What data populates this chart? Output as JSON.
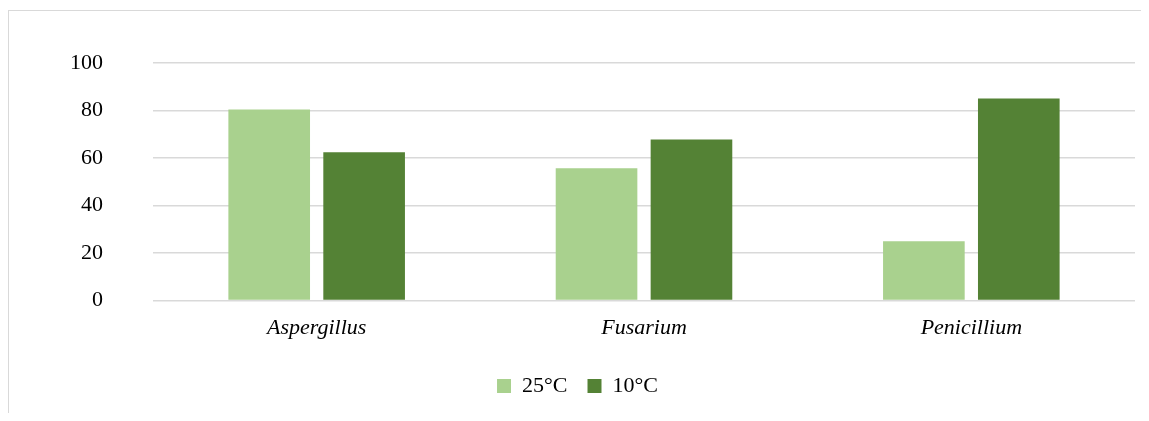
{
  "chart_data": {
    "type": "bar",
    "categories": [
      "Aspergillus",
      "Fusarium",
      "Penicillium"
    ],
    "series": [
      {
        "name": "25°C",
        "color": "#a9d18e",
        "values": [
          80.5,
          55.7,
          25
        ]
      },
      {
        "name": "10°C",
        "color": "#548235",
        "values": [
          62.5,
          67.9,
          85.1
        ]
      }
    ],
    "ylim": [
      0,
      100
    ],
    "yticks": [
      0,
      20,
      40,
      60,
      80,
      100
    ],
    "grid": "y",
    "legend": "bottom"
  }
}
